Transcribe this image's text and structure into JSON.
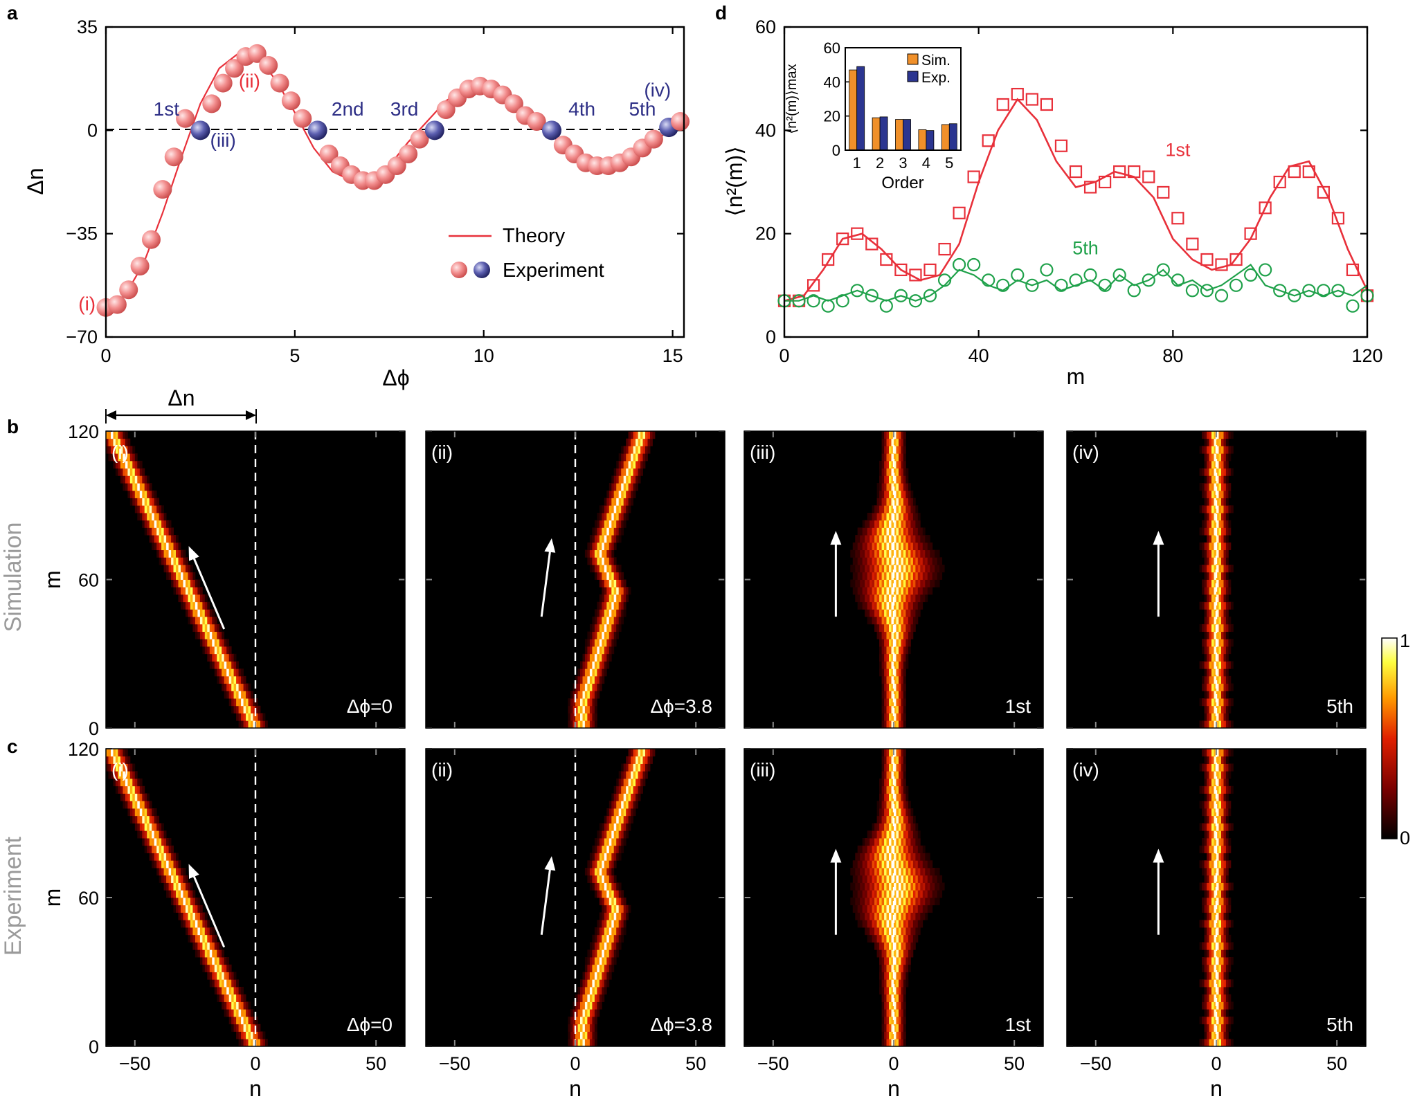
{
  "colors": {
    "red": "#e8303a",
    "pink": "#f28d8d",
    "blue": "#2e2f86",
    "green": "#1fa14a",
    "orange": "#f0902a",
    "navy": "#2b3590"
  },
  "panel_letters": {
    "a": "a",
    "b": "b",
    "c": "c",
    "d": "d"
  },
  "row_labels": {
    "simulation": "Simulation",
    "experiment": "Experiment"
  },
  "dn_arrow_label": "Δn",
  "colorbar": {
    "max_label": "1",
    "min_label": "0"
  },
  "chart_data": [
    {
      "type": "line",
      "panel": "a",
      "xlabel": "Δϕ",
      "ylabel": "Δn",
      "xlim": [
        0,
        15.3
      ],
      "ylim": [
        -70,
        35
      ],
      "xticks": [
        "0",
        "5",
        "10",
        "15"
      ],
      "yticks": [
        "-70",
        "-35",
        "0",
        "35"
      ],
      "legend": {
        "theory": "Theory",
        "experiment": "Experiment",
        "position": "bottom-right"
      },
      "series": [
        {
          "name": "Theory",
          "kind": "line",
          "color": "#e8303a",
          "x": [
            0,
            0.5,
            1,
            1.5,
            2,
            2.5,
            3,
            3.5,
            4,
            4.5,
            5,
            5.5,
            6,
            6.5,
            7,
            7.5,
            8,
            8.5,
            9,
            9.5,
            10,
            10.5,
            11,
            11.5,
            12,
            12.5,
            13,
            13.5,
            14,
            14.5,
            15,
            15.3
          ],
          "y": [
            -60,
            -56,
            -45,
            -28,
            -9,
            9,
            21,
            26,
            25,
            17,
            6,
            -6,
            -14,
            -17,
            -16,
            -12,
            -4,
            3,
            10,
            14,
            15,
            13,
            8,
            2,
            -4,
            -9,
            -12,
            -12,
            -10,
            -5,
            2,
            4
          ]
        },
        {
          "name": "Experiment",
          "kind": "points",
          "x": [
            0,
            0.3,
            0.6,
            0.9,
            1.2,
            1.5,
            1.8,
            2.1,
            2.5,
            2.8,
            3.1,
            3.4,
            3.7,
            4.0,
            4.3,
            4.6,
            4.9,
            5.2,
            5.6,
            5.9,
            6.2,
            6.5,
            6.8,
            7.1,
            7.4,
            7.7,
            8.0,
            8.3,
            8.7,
            9.0,
            9.3,
            9.6,
            9.9,
            10.2,
            10.5,
            10.8,
            11.1,
            11.4,
            11.8,
            12.1,
            12.4,
            12.7,
            13.0,
            13.3,
            13.6,
            13.9,
            14.2,
            14.5,
            14.9,
            15.2
          ],
          "y": [
            -60,
            -59,
            -54,
            -46,
            -37,
            -20,
            -9,
            4,
            0,
            9,
            16,
            21,
            25,
            26,
            22,
            16,
            10,
            4,
            0,
            -8,
            -12,
            -15,
            -17,
            -17,
            -15,
            -12,
            -8,
            -3,
            0,
            7,
            11,
            14,
            15,
            14,
            12,
            9,
            5,
            3,
            0,
            -5,
            -8,
            -11,
            -12,
            -12,
            -11,
            -9,
            -6,
            -3,
            1,
            3
          ],
          "markers": [
            "pink",
            "pink",
            "pink",
            "pink",
            "pink",
            "pink",
            "pink",
            "pink",
            "blue",
            "pink",
            "pink",
            "pink",
            "pink",
            "pink",
            "pink",
            "pink",
            "pink",
            "pink",
            "blue",
            "pink",
            "pink",
            "pink",
            "pink",
            "pink",
            "pink",
            "pink",
            "pink",
            "pink",
            "blue",
            "pink",
            "pink",
            "pink",
            "pink",
            "pink",
            "pink",
            "pink",
            "pink",
            "pink",
            "blue",
            "pink",
            "pink",
            "pink",
            "pink",
            "pink",
            "pink",
            "pink",
            "pink",
            "pink",
            "blue",
            "pink"
          ]
        }
      ],
      "annotations": [
        {
          "text": "(i)",
          "x": -0.5,
          "y": -61,
          "color": "red"
        },
        {
          "text": "(ii)",
          "x": 3.8,
          "y": 14.5,
          "color": "red"
        },
        {
          "text": "(iii)",
          "x": 3.1,
          "y": -5.5,
          "color": "blue"
        },
        {
          "text": "(iv)",
          "x": 14.6,
          "y": 11.5,
          "color": "blue"
        },
        {
          "text": "1st",
          "x": 1.6,
          "y": 5.0,
          "color": "blue"
        },
        {
          "text": "2nd",
          "x": 6.4,
          "y": 5.0,
          "color": "blue"
        },
        {
          "text": "3rd",
          "x": 7.9,
          "y": 5.0,
          "color": "blue"
        },
        {
          "text": "4th",
          "x": 12.6,
          "y": 5.0,
          "color": "blue"
        },
        {
          "text": "5th",
          "x": 14.2,
          "y": 5.0,
          "color": "blue"
        }
      ]
    },
    {
      "type": "line",
      "panel": "d",
      "xlabel": "m",
      "ylabel": "⟨n²(m)⟩",
      "xlim": [
        0,
        120
      ],
      "ylim": [
        0,
        60
      ],
      "xticks": [
        "0",
        "40",
        "80",
        "120"
      ],
      "yticks": [
        "0",
        "20",
        "40",
        "60"
      ],
      "series": [
        {
          "name": "1st",
          "kind": "line",
          "color": "#e8303a",
          "x": [
            0,
            4,
            8,
            12,
            16,
            20,
            24,
            28,
            32,
            36,
            40,
            44,
            48,
            52,
            56,
            60,
            64,
            68,
            72,
            76,
            80,
            84,
            88,
            92,
            96,
            100,
            104,
            108,
            112,
            116,
            120
          ],
          "y": [
            7,
            8,
            13,
            19,
            20,
            17,
            13,
            11,
            12,
            18,
            30,
            40,
            46,
            42,
            34,
            29,
            30,
            32,
            31,
            27,
            19,
            15,
            13,
            14,
            19,
            27,
            33,
            34,
            27,
            17,
            9
          ]
        },
        {
          "name": "1st",
          "kind": "squares",
          "color": "#e8303a",
          "x": [
            0,
            3,
            6,
            9,
            12,
            15,
            18,
            21,
            24,
            27,
            30,
            33,
            36,
            39,
            42,
            45,
            48,
            51,
            54,
            57,
            60,
            63,
            66,
            69,
            72,
            75,
            78,
            81,
            84,
            87,
            90,
            93,
            96,
            99,
            102,
            105,
            108,
            111,
            114,
            117,
            120
          ],
          "y": [
            7,
            7,
            10,
            15,
            19,
            20,
            18,
            15,
            13,
            12,
            13,
            17,
            24,
            31,
            38,
            45,
            47,
            46,
            45,
            37,
            32,
            29,
            30,
            32,
            32,
            31,
            28,
            23,
            18,
            15,
            14,
            15,
            20,
            25,
            30,
            32,
            32,
            28,
            23,
            13,
            8
          ]
        },
        {
          "name": "5th",
          "kind": "line",
          "color": "#1fa14a",
          "x": [
            0,
            3,
            6,
            9,
            12,
            15,
            18,
            21,
            24,
            27,
            30,
            33,
            36,
            39,
            42,
            45,
            48,
            51,
            54,
            57,
            60,
            63,
            66,
            69,
            72,
            75,
            78,
            81,
            84,
            87,
            90,
            93,
            96,
            99,
            102,
            105,
            108,
            111,
            114,
            117,
            120
          ],
          "y": [
            7,
            7,
            8,
            7,
            8,
            9,
            8,
            7,
            8,
            7,
            8,
            10,
            13,
            12,
            10,
            9,
            11,
            10,
            11,
            9,
            10,
            11,
            9,
            12,
            10,
            11,
            13,
            10,
            11,
            9,
            10,
            12,
            14,
            10,
            9,
            8,
            9,
            8,
            9,
            8,
            10
          ]
        },
        {
          "name": "5th",
          "kind": "circles",
          "color": "#1fa14a",
          "x": [
            0,
            3,
            6,
            9,
            12,
            15,
            18,
            21,
            24,
            27,
            30,
            33,
            36,
            39,
            42,
            45,
            48,
            51,
            54,
            57,
            60,
            63,
            66,
            69,
            72,
            75,
            78,
            81,
            84,
            87,
            90,
            93,
            96,
            99,
            102,
            105,
            108,
            111,
            114,
            117,
            120
          ],
          "y": [
            7,
            7,
            7,
            6,
            7,
            9,
            8,
            6,
            8,
            7,
            8,
            11,
            14,
            14,
            11,
            10,
            12,
            10,
            13,
            10,
            11,
            12,
            10,
            12,
            9,
            11,
            13,
            11,
            9,
            9,
            8,
            10,
            12,
            13,
            9,
            8,
            9,
            9,
            9,
            6,
            8
          ]
        }
      ],
      "annotations": [
        {
          "text": "1st",
          "color": "red",
          "x": 81,
          "y": 35
        },
        {
          "text": "5th",
          "color": "green",
          "x": 62,
          "y": 16
        }
      ],
      "inset": {
        "type": "bar",
        "categories": [
          "1",
          "2",
          "3",
          "4",
          "5"
        ],
        "xlabel": "Order",
        "ylabel": "⟨n²(m)⟩max",
        "ylim": [
          0,
          60
        ],
        "yticks": [
          "0",
          "20",
          "40",
          "60"
        ],
        "series": [
          {
            "name": "Sim.",
            "color": "#f0902a",
            "values": [
              47,
              19,
              18,
              12,
              15
            ]
          },
          {
            "name": "Exp.",
            "color": "#2b3590",
            "values": [
              49,
              19.5,
              18,
              11.5,
              15.5
            ]
          }
        ]
      }
    },
    {
      "type": "heatmap",
      "panels": [
        {
          "row": "b",
          "label": "(i)",
          "corner": "Δϕ=0",
          "profile": "diag"
        },
        {
          "row": "b",
          "label": "(ii)",
          "corner": "Δϕ=3.8",
          "profile": "zig"
        },
        {
          "row": "b",
          "label": "(iii)",
          "corner": "1st",
          "profile": "wave"
        },
        {
          "row": "b",
          "label": "(iv)",
          "corner": "5th",
          "profile": "straight"
        },
        {
          "row": "c",
          "label": "(i)",
          "corner": "Δϕ=0",
          "profile": "diag"
        },
        {
          "row": "c",
          "label": "(ii)",
          "corner": "Δϕ=3.8",
          "profile": "zig"
        },
        {
          "row": "c",
          "label": "(iii)",
          "corner": "1st",
          "profile": "wave"
        },
        {
          "row": "c",
          "label": "(iv)",
          "corner": "5th",
          "profile": "straight"
        }
      ],
      "xlabel": "n",
      "ylabel": "m",
      "xlim": [
        -62,
        62
      ],
      "ylim": [
        0,
        120
      ],
      "xticks": [
        "−50",
        "0",
        "50"
      ],
      "yticks": [
        "0",
        "60",
        "120"
      ],
      "colorscale": [
        "#000000",
        "#7a0000",
        "#e02000",
        "#ff9900",
        "#ffff40",
        "#ffffff"
      ]
    }
  ]
}
